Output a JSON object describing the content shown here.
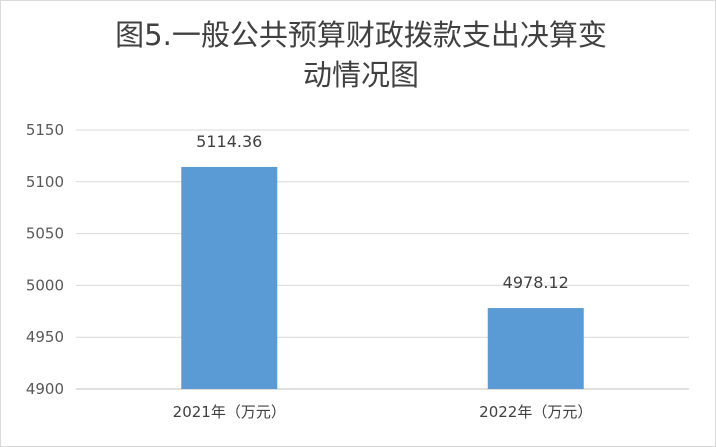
{
  "chart_data": {
    "type": "bar",
    "title_line1": "图5.一般公共预算财政拨款支出决算变",
    "title_line2": "动情况图",
    "categories": [
      "2021年（万元）",
      "2022年（万元）"
    ],
    "values": [
      5114.36,
      4978.12
    ],
    "data_labels": [
      "5114.36",
      "4978.12"
    ],
    "yticks": [
      "4900",
      "4950",
      "5000",
      "5050",
      "5100",
      "5150"
    ],
    "ylim": [
      4900,
      5150
    ],
    "grid": true,
    "legend": "none",
    "colors": {
      "bar": "#5b9bd5",
      "grid": "#d9d9d9"
    }
  }
}
